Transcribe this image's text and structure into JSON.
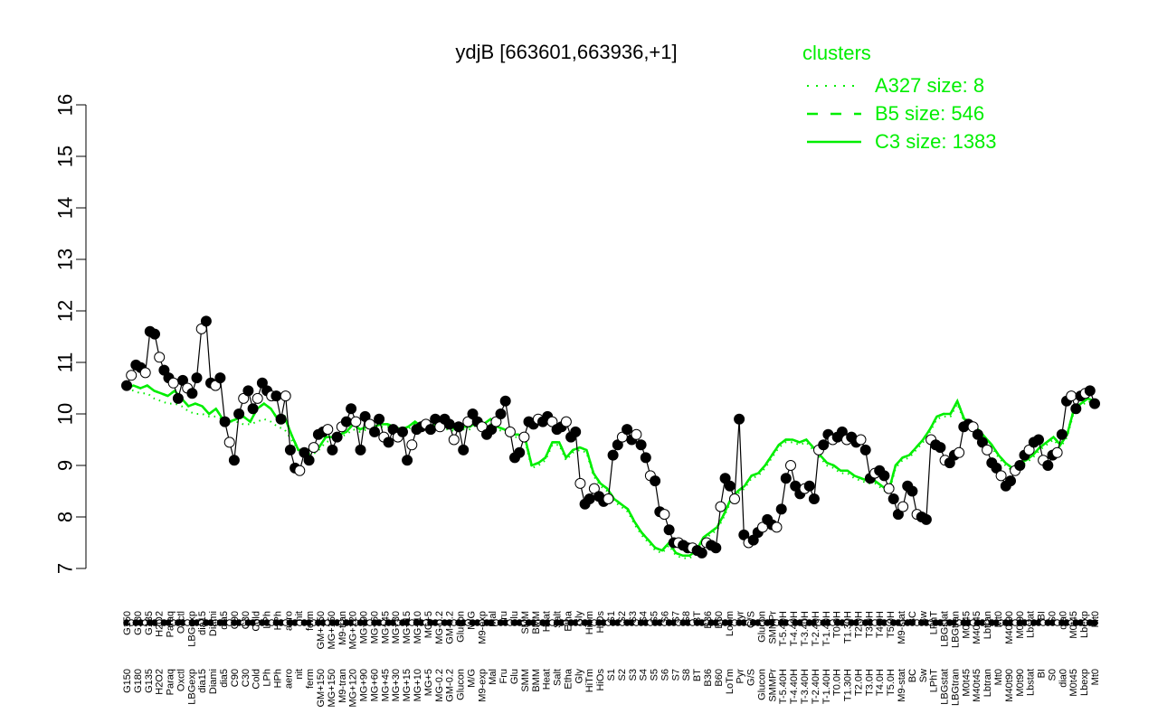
{
  "chart_data": {
    "type": "line",
    "title": "ydjB [663601,663936,+1]",
    "xlabel": "",
    "ylabel": "",
    "ylim": [
      7,
      16
    ],
    "yticks": [
      7,
      8,
      9,
      10,
      11,
      12,
      13,
      14,
      15,
      16
    ],
    "grid": false,
    "legend": {
      "title": "clusters",
      "position": "top-right",
      "color": "#00ee00",
      "entries": [
        {
          "label": "A327 size: 8",
          "style": "dotted"
        },
        {
          "label": "B5 size: 546",
          "style": "dashed"
        },
        {
          "label": "C3 size: 1383",
          "style": "solid"
        }
      ]
    },
    "x_tick_labels": [
      "G150",
      "G180",
      "G135",
      "H2O2",
      "Paraq",
      "Oxctl",
      "LBGexp",
      "dia15",
      "Diami",
      "dia5",
      "C90",
      "C30",
      "Cold",
      "LPh",
      "HPh",
      "aero",
      "nit",
      "ferm",
      "GM+150",
      "MG+150",
      "M9-tran",
      "MG+120",
      "MG+90",
      "MG+60",
      "MG+45",
      "MG+30",
      "MG+15",
      "MG+10",
      "MG+5",
      "MG-0.2",
      "GM-0.2",
      "Glucon",
      "M/G",
      "M9-exp",
      "Mal",
      "Fru",
      "Glu",
      "SMM",
      "BMM",
      "Heat",
      "Salt",
      "Etha",
      "Gly",
      "HiTm",
      "HiOs",
      "S1",
      "S2",
      "S3",
      "S4",
      "S5",
      "S6",
      "S7",
      "S8",
      "BT",
      "B36",
      "B60",
      "LoTm",
      "Pyr",
      "G/S",
      "Glucon",
      "SMMPr",
      "T-5.40H",
      "T-4.40H",
      "T-3.40H",
      "T-2.40H",
      "T-1.40H",
      "T0.0H",
      "T1.30H",
      "T2.0H",
      "T3.0H",
      "T4.0H",
      "T5.0H",
      "M9-stat",
      "BC",
      "Sw",
      "LPhT",
      "LBGstat",
      "LBGtran",
      "M0t45",
      "M40t45",
      "Lbtran",
      "Mt0",
      "M40t90",
      "M0t90",
      "Lbstat",
      "BI",
      "S0",
      "dia0",
      "M0t45",
      "Lbexp",
      "Mt0"
    ],
    "series": [
      {
        "name": "",
        "color": "#000000",
        "values": [
          10.55,
          10.75,
          10.95,
          10.9,
          10.8,
          11.6,
          11.55,
          11.1,
          10.85,
          10.7,
          10.6,
          10.3,
          10.65,
          10.5,
          10.4,
          10.7,
          11.65,
          11.8,
          10.6,
          10.55,
          10.7,
          9.85,
          9.45,
          9.1,
          10.0,
          10.3,
          10.45,
          10.1,
          10.3,
          10.6,
          10.45,
          10.35,
          10.35,
          9.9,
          10.35,
          9.3,
          8.95,
          8.9,
          9.25,
          9.1,
          9.35,
          9.6,
          9.65,
          9.7,
          9.3,
          9.55,
          9.75,
          9.85,
          10.1,
          9.85,
          9.3,
          9.95,
          9.8,
          9.65,
          9.9,
          9.55,
          9.45,
          9.7,
          9.55,
          9.65,
          9.1,
          9.4,
          9.7,
          9.75,
          9.8,
          9.7,
          9.9,
          9.75,
          9.9,
          9.8,
          9.5,
          9.75,
          9.3,
          9.85,
          10.0,
          9.85,
          9.75,
          9.6,
          9.7,
          9.85,
          10.0,
          10.25,
          9.65,
          9.15,
          9.25,
          9.55,
          9.85,
          9.8,
          9.9,
          9.85,
          9.95,
          9.85,
          9.7,
          9.75,
          9.85,
          9.55,
          9.65,
          8.65,
          8.25,
          8.35,
          8.55,
          8.4,
          8.3,
          8.35,
          9.2,
          9.4,
          9.55,
          9.7,
          9.5,
          9.6,
          9.4,
          9.15,
          8.8,
          8.7,
          8.1,
          8.05,
          7.75,
          7.5,
          7.5,
          7.45,
          7.4,
          7.4,
          7.35,
          7.3,
          7.5,
          7.45,
          7.4,
          8.2,
          8.75,
          8.6,
          8.35,
          9.9,
          7.65,
          7.5,
          7.55,
          7.7,
          7.8,
          7.95,
          7.85,
          7.8,
          8.15,
          8.75,
          9.0,
          8.6,
          8.45,
          8.55,
          8.6,
          8.35,
          9.3,
          9.4,
          9.6,
          9.5,
          9.55,
          9.65,
          9.5,
          9.55,
          9.45,
          9.5,
          9.3,
          8.75,
          8.85,
          8.9,
          8.8,
          8.55,
          8.35,
          8.05,
          8.2,
          8.6,
          8.5,
          8.05,
          8.0,
          7.95,
          9.5,
          9.4,
          9.35,
          9.1,
          9.05,
          9.2,
          9.25,
          9.75,
          9.8,
          9.75,
          9.6,
          9.45,
          9.3,
          9.05,
          8.95,
          8.8,
          8.6,
          8.7,
          8.9,
          9.0,
          9.2,
          9.3,
          9.45,
          9.5,
          9.1,
          9.0,
          9.2,
          9.25,
          9.6,
          10.25,
          10.35,
          10.1,
          10.35,
          10.4,
          10.45,
          10.2
        ]
      },
      {
        "name": "",
        "color": "#00ee00",
        "values": [
          10.5,
          10.55,
          10.5,
          10.55,
          10.45,
          10.4,
          10.35,
          10.45,
          10.3,
          10.15,
          10.2,
          10.15,
          10.0,
          10.1,
          9.9,
          9.85,
          9.9,
          9.95,
          9.85,
          10.1,
          10.2,
          10.1,
          9.9,
          9.95,
          9.6,
          9.3,
          9.3,
          9.3,
          9.35,
          9.55,
          9.55,
          9.6,
          9.65,
          9.8,
          9.7,
          9.75,
          9.75,
          9.8,
          9.8,
          9.75,
          9.7,
          9.75,
          9.85,
          9.75,
          9.75,
          9.8,
          9.75,
          9.75,
          9.7,
          9.75,
          9.75,
          9.85,
          9.8,
          9.9,
          9.75,
          9.7,
          9.6,
          9.6,
          9.55,
          9.0,
          9.05,
          9.15,
          9.45,
          9.45,
          9.15,
          9.3,
          9.35,
          9.3,
          8.85,
          8.65,
          8.55,
          8.35,
          8.25,
          8.15,
          7.9,
          7.7,
          7.55,
          7.4,
          7.35,
          7.5,
          7.3,
          7.25,
          7.25,
          7.35,
          7.6,
          7.7,
          7.8,
          8.05,
          8.35,
          8.5,
          8.6,
          8.8,
          8.85,
          9.0,
          9.2,
          9.4,
          9.5,
          9.5,
          9.45,
          9.5,
          9.35,
          9.2,
          9.05,
          9.0,
          8.9,
          8.9,
          8.8,
          8.75,
          8.7,
          8.7,
          8.6,
          8.5,
          9.0,
          9.15,
          9.2,
          9.35,
          9.5,
          9.7,
          9.95,
          10.0,
          10.0,
          10.25,
          9.9,
          9.85,
          9.7,
          9.55,
          9.4,
          9.2,
          9.05,
          8.95,
          9.05,
          9.1,
          9.2,
          9.35,
          9.45,
          9.55,
          9.4,
          9.6,
          10.1,
          10.2,
          10.3,
          10.25
        ]
      }
    ],
    "series_b5_dashed": {
      "name": "",
      "color": "#00ee00",
      "values": [
        10.5,
        10.55,
        10.5,
        10.55,
        10.45,
        10.4,
        10.35,
        10.45,
        10.3,
        10.15,
        10.2,
        10.15,
        10.0,
        10.1,
        9.9,
        9.85,
        9.9,
        9.95,
        9.85,
        10.1,
        10.2,
        10.1,
        9.9,
        9.95,
        9.6,
        9.3,
        9.3,
        9.3,
        9.35,
        9.55,
        9.55,
        9.6,
        9.65,
        9.8,
        9.7,
        9.75,
        9.75,
        9.8,
        9.8,
        9.75,
        9.7,
        9.75,
        9.85,
        9.75,
        9.75,
        9.8,
        9.75,
        9.75,
        9.7,
        9.75,
        9.75,
        9.85,
        9.8,
        9.9,
        9.75,
        9.7,
        9.6,
        9.6,
        9.55,
        9.0,
        9.05,
        9.15,
        9.45,
        9.45,
        9.15,
        9.3,
        9.35,
        9.3,
        8.85,
        8.65,
        8.55,
        8.35,
        8.25,
        8.15,
        7.9,
        7.7,
        7.55,
        7.4,
        7.35,
        7.5,
        7.3,
        7.25,
        7.25,
        7.35,
        7.6,
        7.7,
        7.8,
        8.05,
        8.35,
        8.5,
        8.6,
        8.8,
        8.85,
        9.0,
        9.2,
        9.4,
        9.5,
        9.5,
        9.45,
        9.5,
        9.35,
        9.2,
        9.05,
        9.0,
        8.9,
        8.9,
        8.8,
        8.75,
        8.7,
        8.7,
        8.6,
        8.5,
        9.0,
        9.15,
        9.2,
        9.35,
        9.5,
        9.7,
        9.95,
        10.0,
        10.0,
        10.25,
        9.9,
        9.85,
        9.7,
        9.55,
        9.4,
        9.2,
        9.05,
        8.95,
        9.05,
        9.1,
        9.2,
        9.35,
        9.45,
        9.55,
        9.4,
        9.6,
        10.1,
        10.2,
        10.3,
        10.25
      ]
    },
    "series_a327_dotted": {
      "name": "",
      "color": "#00ee00",
      "values": [
        10.5,
        10.45,
        10.4,
        10.4,
        10.3,
        10.25,
        10.2,
        10.2,
        10.15,
        10.05,
        10.0,
        10.0,
        9.95,
        9.95,
        9.9,
        9.85,
        9.85,
        9.8,
        9.8,
        9.85,
        9.9,
        9.85,
        9.75,
        9.7,
        9.5,
        9.3,
        9.25,
        9.2,
        9.3,
        9.45,
        9.5,
        9.55,
        9.6,
        9.7,
        9.65,
        9.7,
        9.7,
        9.75,
        9.75,
        9.7,
        9.65,
        9.7,
        9.8,
        9.7,
        9.7,
        9.75,
        9.7,
        9.7,
        9.65,
        9.7,
        9.7,
        9.8,
        9.75,
        9.8,
        9.7,
        9.65,
        9.55,
        9.55,
        9.5,
        8.95,
        9.0,
        9.1,
        9.4,
        9.4,
        9.1,
        9.25,
        9.3,
        9.25,
        8.8,
        8.6,
        8.5,
        8.3,
        8.2,
        8.1,
        7.85,
        7.65,
        7.5,
        7.35,
        7.3,
        7.45,
        7.25,
        7.2,
        7.2,
        7.3,
        7.55,
        7.65,
        7.75,
        8.0,
        8.3,
        8.45,
        8.55,
        8.75,
        8.8,
        8.95,
        9.15,
        9.35,
        9.45,
        9.45,
        9.4,
        9.45,
        9.3,
        9.15,
        9.0,
        8.95,
        8.85,
        8.85,
        8.75,
        8.7,
        8.65,
        8.65,
        8.55,
        8.45,
        8.95,
        9.1,
        9.15,
        9.3,
        9.45,
        9.65,
        9.9,
        9.95,
        9.95,
        10.2,
        9.85,
        9.8,
        9.65,
        9.5,
        9.35,
        9.15,
        9.0,
        8.9,
        9.0,
        9.05,
        9.15,
        9.3,
        9.4,
        9.5,
        9.35,
        9.55,
        10.05,
        10.15,
        10.25,
        10.2
      ]
    },
    "colors": {
      "axis": "#000000",
      "points_filled": "#000000",
      "points_open": "#ffffff",
      "cluster_lines": "#00ee00"
    }
  }
}
